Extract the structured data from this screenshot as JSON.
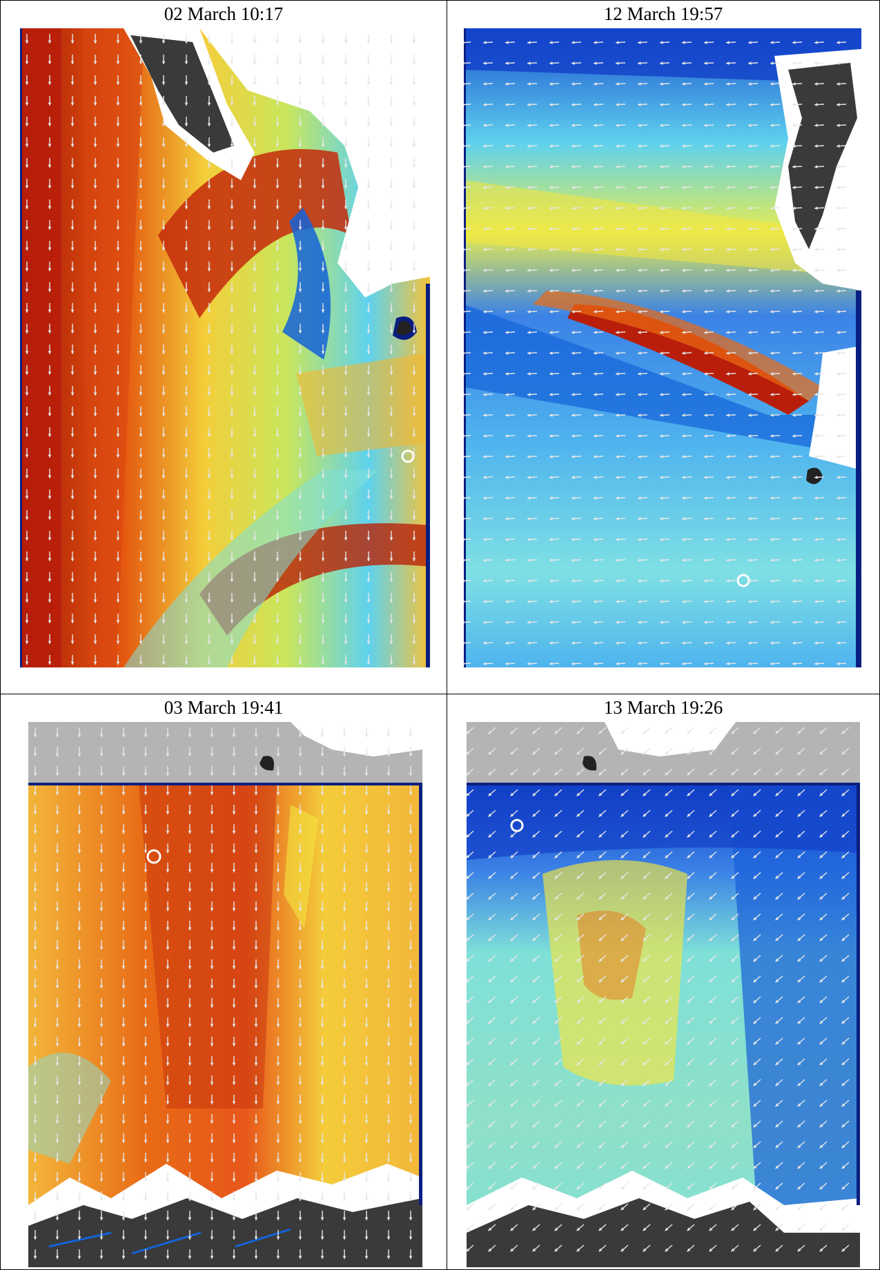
{
  "figure": {
    "panels": [
      {
        "caption": "02 March 10:17",
        "scheme": "warm-north",
        "arrow_dir": "south"
      },
      {
        "caption": "12 March 19:57",
        "scheme": "cool-band",
        "arrow_dir": "west"
      },
      {
        "caption": "03 March 19:41",
        "scheme": "warm-south",
        "arrow_dir": "south"
      },
      {
        "caption": "13 March 19:26",
        "scheme": "cool-south",
        "arrow_dir": "southwest"
      }
    ],
    "colors": {
      "red": "#b81e0a",
      "orange": "#ec6b13",
      "yellow": "#f4e640",
      "cyan": "#5fd4ee",
      "blue": "#1463d9",
      "navy": "#0a1e80",
      "land": "#3a3a3a",
      "ice": "#ffffff",
      "nodata": "#b4b4b4",
      "arrow": "#e6e6e6"
    }
  }
}
